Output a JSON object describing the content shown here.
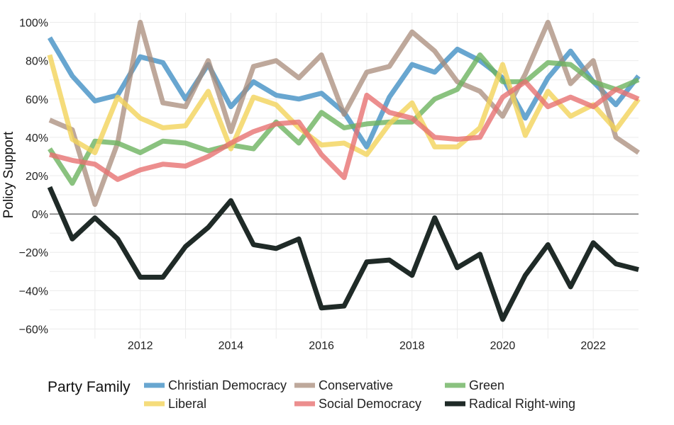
{
  "chart_data": {
    "type": "line",
    "xlabel": "",
    "ylabel": "Policy Support",
    "legend_title": "Party Family",
    "legend_position": "bottom",
    "grid": true,
    "xlim": [
      2010,
      2023
    ],
    "ylim": [
      -65,
      105
    ],
    "x_ticks": [
      2012,
      2014,
      2016,
      2018,
      2020,
      2022
    ],
    "y_ticks": [
      -60,
      -40,
      -20,
      0,
      20,
      40,
      60,
      80,
      100
    ],
    "y_tick_labels": [
      "−60%",
      "−40%",
      "−20%",
      "0%",
      "20%",
      "40%",
      "60%",
      "80%",
      "100%"
    ],
    "x": [
      2010.0,
      2010.5,
      2011.0,
      2011.5,
      2012.0,
      2012.5,
      2013.0,
      2013.5,
      2014.0,
      2014.5,
      2015.0,
      2015.5,
      2016.0,
      2016.5,
      2017.0,
      2017.5,
      2018.0,
      2018.5,
      2019.0,
      2019.5,
      2020.0,
      2020.5,
      2021.0,
      2021.5,
      2022.0,
      2022.5,
      2023.0
    ],
    "series": [
      {
        "name": "Christian Democracy",
        "color": "#4e96c8",
        "alpha": 0.85,
        "values": [
          92,
          72,
          59,
          62,
          82,
          79,
          60,
          78,
          56,
          69,
          62,
          60,
          63,
          53,
          35,
          61,
          78,
          74,
          86,
          80,
          71,
          50,
          71,
          85,
          69,
          57,
          72
        ]
      },
      {
        "name": "Conservative",
        "color": "#a88b7a",
        "alpha": 0.75,
        "values": [
          49,
          44,
          5,
          37,
          100,
          58,
          56,
          80,
          43,
          77,
          80,
          71,
          83,
          52,
          74,
          77,
          95,
          85,
          69,
          64,
          51,
          73,
          100,
          68,
          80,
          40,
          32
        ]
      },
      {
        "name": "Green",
        "color": "#6db35f",
        "alpha": 0.8,
        "values": [
          34,
          16,
          38,
          37,
          32,
          38,
          37,
          33,
          36,
          34,
          48,
          37,
          53,
          45,
          47,
          48,
          48,
          60,
          65,
          83,
          69,
          69,
          79,
          78,
          69,
          65,
          70
        ]
      },
      {
        "name": "Liberal",
        "color": "#f2d35a",
        "alpha": 0.8,
        "values": [
          83,
          39,
          32,
          61,
          50,
          45,
          46,
          64,
          34,
          61,
          57,
          45,
          36,
          37,
          31,
          47,
          58,
          35,
          35,
          45,
          78,
          41,
          64,
          51,
          57,
          44,
          60
        ]
      },
      {
        "name": "Social Democracy",
        "color": "#e77272",
        "alpha": 0.8,
        "values": [
          31,
          28,
          26,
          18,
          23,
          26,
          25,
          30,
          37,
          43,
          47,
          48,
          31,
          19,
          62,
          53,
          50,
          40,
          39,
          40,
          61,
          69,
          56,
          61,
          56,
          65,
          60
        ]
      },
      {
        "name": "Radical Right-wing",
        "color": "#1f2a27",
        "alpha": 1.0,
        "values": [
          14,
          -13,
          -2,
          -13,
          -33,
          -33,
          -17,
          -7,
          7,
          -16,
          -18,
          -13,
          -49,
          -48,
          -25,
          -24,
          -32,
          -2,
          -28,
          -21,
          -55,
          -32,
          -16,
          -38,
          -15,
          -26,
          -29
        ]
      }
    ]
  }
}
